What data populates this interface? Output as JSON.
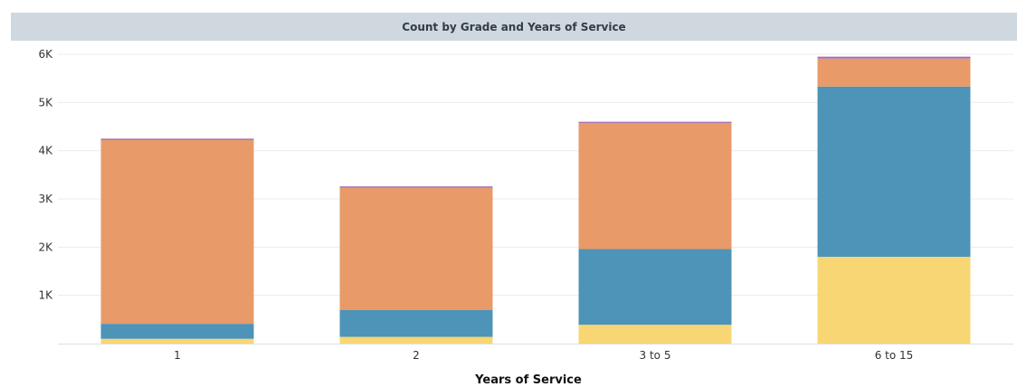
{
  "chart_data": {
    "type": "bar",
    "stacked": true,
    "title": "Count by Grade and Years of Service",
    "xlabel": "Years of Service",
    "ylabel": "",
    "categories": [
      "1",
      "2",
      "3 to 5",
      "6 to 15"
    ],
    "yticks": [
      1000,
      2000,
      3000,
      4000,
      5000,
      6000
    ],
    "ytick_labels": [
      "1K",
      "2K",
      "3K",
      "4K",
      "5K",
      "6K"
    ],
    "ylim": [
      0,
      6000
    ],
    "grid": true,
    "legend": "none",
    "series": [
      {
        "color": "#f8d673",
        "values": [
          100,
          140,
          390,
          1800
        ]
      },
      {
        "color": "#4e93b8",
        "values": [
          310,
          560,
          1570,
          3530
        ]
      },
      {
        "color": "#e89a68",
        "values": [
          3810,
          2530,
          2610,
          580
        ]
      },
      {
        "color": "#a870b0",
        "values": [
          30,
          30,
          30,
          40
        ]
      }
    ]
  }
}
